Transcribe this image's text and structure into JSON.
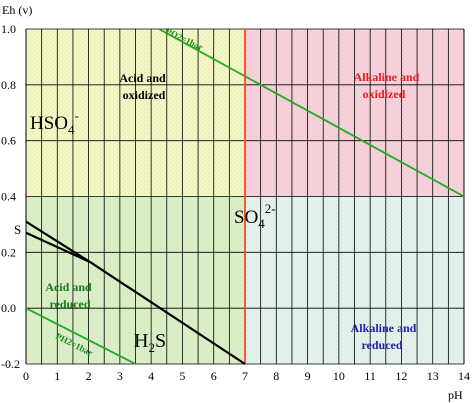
{
  "chart_data": {
    "type": "diagram",
    "title": "",
    "xlabel": "pH",
    "ylabel": "Eh (v)",
    "xlim": [
      0,
      14
    ],
    "ylim": [
      -0.2,
      1.0
    ],
    "x_ticks": [
      "0",
      "1",
      "2",
      "3",
      "4",
      "5",
      "6",
      "7",
      "8",
      "9",
      "10",
      "11",
      "12",
      "13",
      "14"
    ],
    "y_ticks": [
      {
        "value": 1.0,
        "label": "1.0"
      },
      {
        "value": 0.8,
        "label": "0.8"
      },
      {
        "value": 0.6,
        "label": "0.6"
      },
      {
        "value": 0.4,
        "label": "0.4"
      },
      {
        "value": 0.2,
        "label": "0.2"
      },
      {
        "value": 0.0,
        "label": "0.0"
      },
      {
        "value": -0.2,
        "label": "-0.2"
      }
    ],
    "regions": [
      {
        "name": "Acid and oxidized",
        "color": "#f4f8c4",
        "x": [
          0,
          7
        ],
        "y": [
          0.4,
          1.0
        ]
      },
      {
        "name": "Alkaline and oxidized",
        "color": "#f8d2dc",
        "x": [
          7,
          14
        ],
        "y": [
          0.4,
          1.0
        ]
      },
      {
        "name": "Acid and reduced",
        "color": "#dcf0c8",
        "x": [
          0,
          7
        ],
        "y": [
          -0.2,
          0.4
        ]
      },
      {
        "name": "Alkaline and reduced",
        "color": "#e4f4ec",
        "x": [
          7,
          14
        ],
        "y": [
          -0.2,
          0.4
        ]
      }
    ],
    "lines": [
      {
        "name": "PO2=1bar",
        "color": "#22aa22",
        "points": [
          [
            4.25,
            1.0
          ],
          [
            14,
            0.4
          ]
        ]
      },
      {
        "name": "PH2=1bar",
        "color": "#22aa22",
        "points": [
          [
            0,
            0.0
          ],
          [
            3.5,
            -0.2
          ]
        ]
      },
      {
        "name": "S/H2S",
        "color": "#000000",
        "points": [
          [
            0,
            0.31
          ],
          [
            2.05,
            0.165
          ]
        ]
      },
      {
        "name": "S/H2S lower",
        "color": "#000000",
        "points": [
          [
            0,
            0.27
          ],
          [
            2.05,
            0.165
          ]
        ]
      },
      {
        "name": "HSO4/SO4 boundary",
        "color": "#ff4422",
        "points": [
          [
            7,
            1.0
          ],
          [
            7,
            -0.2
          ]
        ]
      },
      {
        "name": "SO4/H2S",
        "color": "#000000",
        "points": [
          [
            2.05,
            0.165
          ],
          [
            7,
            -0.2
          ]
        ]
      }
    ],
    "labels": {
      "acid_oxidized": [
        "Acid and",
        "oxidized"
      ],
      "alkaline_oxidized": [
        "Alkaline and",
        "oxidized"
      ],
      "acid_reduced": [
        "Acid and",
        "reduced"
      ],
      "alkaline_reduced": [
        "Alkaline and",
        "reduced"
      ],
      "po2": "PO2=1bar",
      "ph2": "PH2=1bar",
      "hso4_base": "HSO",
      "hso4_sub": "4",
      "hso4_sup": "-",
      "so4_base": "SO",
      "so4_sub": "4",
      "so4_sup": "2-",
      "h2s_h": "H",
      "h2s_sub": "2",
      "h2s_s": "S",
      "s_species": "S"
    },
    "colors": {
      "acid_oxidized_text": "#000000",
      "alkaline_oxidized_text": "#dd2222",
      "acid_reduced_text": "#1a7a1a",
      "alkaline_reduced_text": "#2222aa"
    }
  }
}
